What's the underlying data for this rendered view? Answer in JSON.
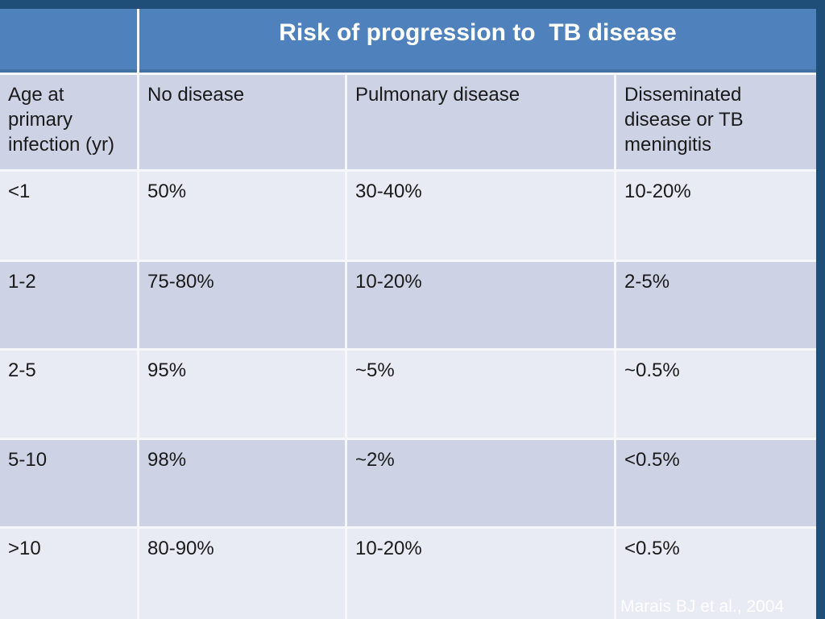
{
  "slide": {
    "background_color": "#1F4E79",
    "citation": "Marais BJ et al., 2004"
  },
  "table": {
    "title": "Risk of progression to  TB disease",
    "column_headers": [
      "Age at primary infection (yr)",
      "No disease",
      "Pulmonary disease",
      "Disseminated disease or TB meningitis"
    ],
    "rows": [
      [
        "<1",
        "50%",
        "30-40%",
        "10-20%"
      ],
      [
        "1-2",
        "75-80%",
        "10-20%",
        "2-5%"
      ],
      [
        "2-5",
        "95%",
        "~5%",
        "~0.5%"
      ],
      [
        "5-10",
        "98%",
        "~2%",
        "<0.5%"
      ],
      [
        ">10",
        "80-90%",
        "10-20%",
        "<0.5%"
      ]
    ],
    "colors": {
      "slide_navy": "#1F4E79",
      "header_blue": "#4F81BD",
      "header_blue_edge": "#4372A5",
      "band_dark": "#CDD3E5",
      "band_light": "#E9EBF4",
      "divider": "#F6F7FA",
      "text_dark": "#1A1A1A",
      "text_white": "#FFFFFF"
    }
  },
  "chart_data": {
    "type": "table",
    "title": "Risk of progression to  TB disease",
    "columns": [
      "Age at primary infection (yr)",
      "No disease",
      "Pulmonary disease",
      "Disseminated disease or TB meningitis"
    ],
    "rows": [
      [
        "<1",
        "50%",
        "30-40%",
        "10-20%"
      ],
      [
        "1-2",
        "75-80%",
        "10-20%",
        "2-5%"
      ],
      [
        "2-5",
        "95%",
        "~5%",
        "~0.5%"
      ],
      [
        "5-10",
        "98%",
        "~2%",
        "<0.5%"
      ],
      [
        ">10",
        "80-90%",
        "10-20%",
        "<0.5%"
      ]
    ],
    "annotations": [
      "Marais BJ et al., 2004"
    ]
  }
}
